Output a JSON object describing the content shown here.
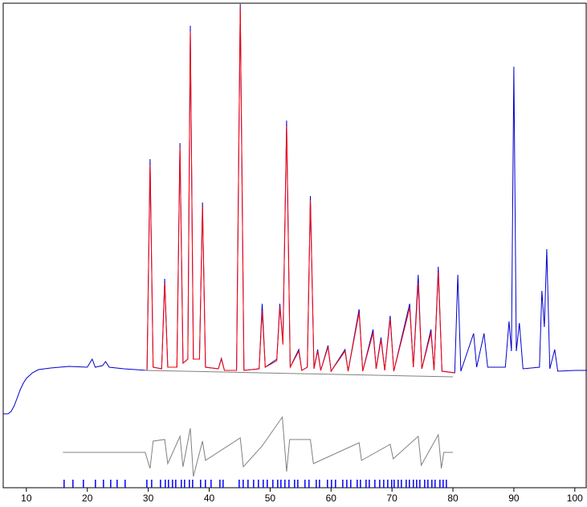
{
  "chart_data": {
    "type": "line",
    "xlim": [
      6.2,
      102
    ],
    "ylim": [
      0,
      603
    ],
    "xticks": [
      10,
      20,
      30,
      40,
      50,
      60,
      70,
      80,
      90,
      100
    ],
    "series": [
      {
        "color": "#0000cc",
        "x": [
          6.2,
          7,
          7.5,
          8,
          8.5,
          9,
          9.5,
          10,
          11,
          12,
          14,
          17,
          20,
          20.8,
          21.3,
          22.5,
          23,
          23.6,
          26,
          29.8,
          30.3,
          30.8,
          32.2,
          32.7,
          33.2,
          34.7,
          35.2,
          35.7,
          36.5,
          36.9,
          37.4,
          38.4,
          38.9,
          39.4,
          41.5,
          42,
          42.5,
          44.5,
          45.1,
          45.7,
          48.2,
          48.7,
          49.2,
          51.1,
          51.6,
          52.1,
          52.7,
          53.3,
          54.7,
          55.2,
          56.1,
          56.6,
          57.2,
          57.8,
          58.3,
          59.5,
          60,
          62.3,
          62.8,
          64.6,
          65.2,
          66.9,
          67.4,
          68.2,
          68.8,
          69.7,
          70.3,
          72.9,
          73.5,
          74.3,
          74.9,
          76.4,
          76.9,
          77.6,
          78.2,
          80.3,
          80.8,
          81.3,
          83.4,
          83.9,
          85.1,
          85.7,
          88.6,
          89.2,
          89.6,
          90,
          90.4,
          90.9,
          91.5,
          94.2,
          94.6,
          95,
          95.4,
          95.9,
          96.7,
          97.2,
          100,
          102
        ],
        "values": [
          92,
          92,
          95,
          102,
          112,
          122,
          130,
          136,
          143,
          147,
          149,
          151,
          150,
          160,
          150,
          152,
          157,
          150,
          148,
          146,
          409,
          150,
          148,
          260,
          150,
          150,
          429,
          155,
          160,
          575,
          160,
          160,
          355,
          150,
          148,
          161,
          146,
          146,
          602,
          146,
          148,
          229,
          150,
          160,
          229,
          180,
          457,
          150,
          172,
          146,
          150,
          363,
          148,
          172,
          146,
          177,
          145,
          172,
          145,
          222,
          145,
          197,
          148,
          187,
          146,
          214,
          145,
          229,
          150,
          265,
          148,
          197,
          146,
          275,
          145,
          143,
          265,
          145,
          192,
          150,
          192,
          150,
          150,
          207,
          170,
          524,
          170,
          205,
          148,
          150,
          245,
          200,
          297,
          148,
          172,
          145,
          146,
          146
        ]
      },
      {
        "color": "#ff0000",
        "x": [
          29.8,
          30.3,
          30.8,
          32.2,
          32.7,
          33.2,
          34.7,
          35.2,
          35.7,
          36.5,
          36.9,
          37.4,
          38.4,
          38.9,
          39.4,
          41.5,
          42,
          42.5,
          44.5,
          45.1,
          45.7,
          48.2,
          48.7,
          49.2,
          51.1,
          51.6,
          52.1,
          52.7,
          53.3,
          54.7,
          55.2,
          56.1,
          56.6,
          57.2,
          57.8,
          58.3,
          59.5,
          60,
          62.3,
          62.8,
          64.6,
          65.2,
          66.9,
          67.4,
          68.2,
          68.8,
          69.7,
          70.3,
          72.9,
          73.5,
          74.3,
          74.9,
          76.4,
          76.9,
          77.6,
          78.2,
          80.3
        ],
        "values": [
          146,
          402,
          150,
          148,
          255,
          150,
          150,
          424,
          155,
          160,
          568,
          160,
          160,
          350,
          150,
          148,
          160,
          146,
          146,
          598,
          146,
          148,
          220,
          150,
          158,
          225,
          178,
          450,
          150,
          170,
          146,
          150,
          358,
          148,
          170,
          146,
          175,
          145,
          170,
          145,
          218,
          145,
          193,
          148,
          184,
          146,
          210,
          145,
          224,
          150,
          255,
          148,
          193,
          146,
          268,
          145,
          143
        ]
      },
      {
        "color": "#808080",
        "x": [
          29.4,
          80
        ],
        "values": [
          146,
          138
        ]
      },
      {
        "color": "#808080",
        "x": [
          16,
          29.5,
          30.3,
          30.8,
          32.7,
          33.2,
          35.2,
          35.7,
          36.9,
          37.4,
          38.9,
          39.4,
          45.1,
          45.6,
          48.7,
          52,
          52.7,
          53.2,
          56.6,
          57.1,
          64.6,
          65,
          69.7,
          70.2,
          74.3,
          74.8,
          77.6,
          78.1,
          78.5,
          80
        ],
        "values": [
          44,
          44,
          24,
          58,
          60,
          30,
          64,
          26,
          74,
          14,
          58,
          34,
          62,
          26,
          52,
          88,
          20,
          60,
          60,
          30,
          56,
          34,
          54,
          36,
          64,
          28,
          66,
          24,
          44,
          44
        ]
      }
    ],
    "reflection_ticks": {
      "color": "#0000ff",
      "x": [
        16.19,
        17.64,
        19.36,
        21.33,
        22.65,
        23.84,
        24.89,
        26.21,
        29.77,
        30.56,
        32.01,
        32.8,
        33.32,
        33.98,
        34.51,
        35.43,
        35.96,
        36.75,
        37.28,
        38.59,
        39.38,
        40.31,
        41.76,
        42.28,
        44.92,
        45.58,
        46.37,
        47.29,
        48.08,
        48.87,
        49.53,
        50.45,
        51.24,
        51.77,
        52.43,
        53.09,
        54.01,
        54.54,
        55.72,
        56.38,
        57.57,
        58.1,
        59.41,
        60.07,
        60.73,
        61.92,
        62.58,
        63.23,
        64.29,
        64.82,
        65.74,
        66.27,
        67.19,
        67.98,
        68.64,
        69.3,
        69.95,
        70.35,
        71.01,
        71.54,
        72.33,
        72.85,
        73.51,
        74.04,
        74.57,
        75.36,
        75.89,
        76.54,
        77.07,
        77.86,
        78.39,
        78.92
      ]
    }
  }
}
